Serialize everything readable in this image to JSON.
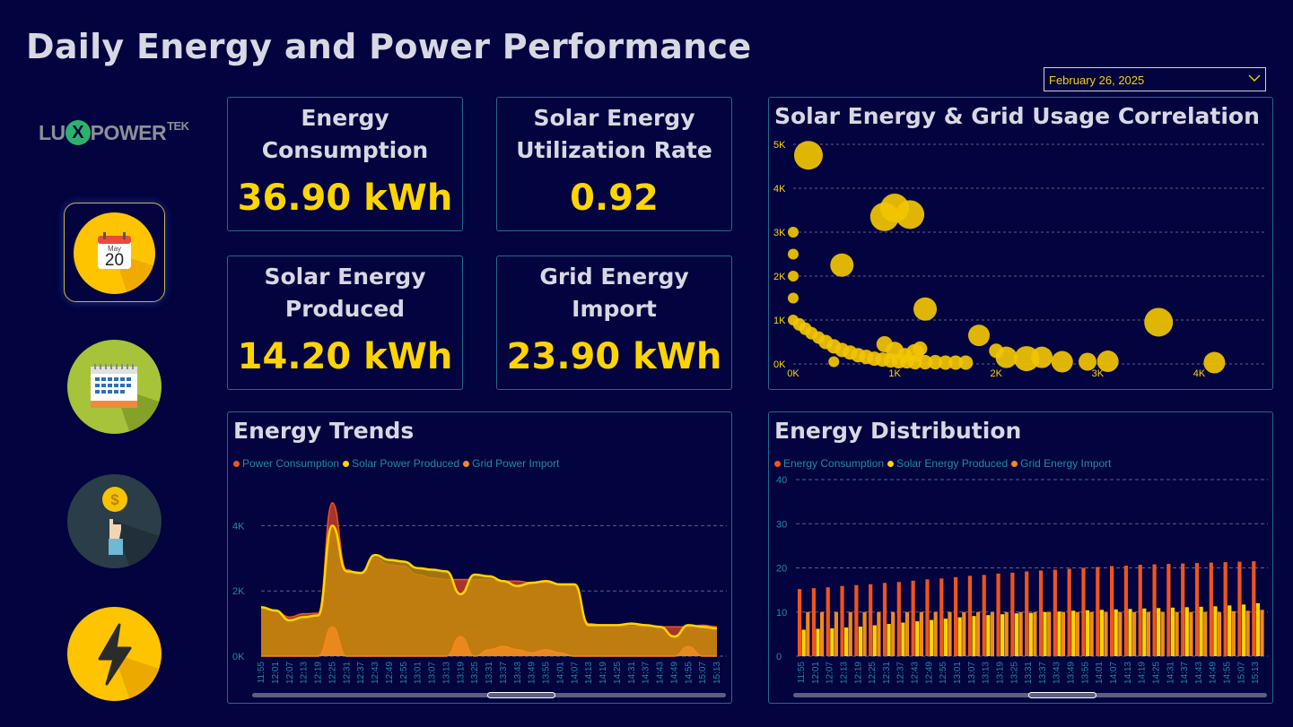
{
  "header": {
    "title": "Daily Energy and Power Performance"
  },
  "date_filter": {
    "value": "February 26, 2025"
  },
  "logo": {
    "part1": "LU",
    "x": "X",
    "part2": "POWER",
    "tek": "TEK"
  },
  "sidebar": {
    "items": [
      {
        "name": "daily",
        "icon": "daily-calendar-icon",
        "month": "May",
        "day": "20",
        "active": true
      },
      {
        "name": "monthly",
        "icon": "monthly-calendar-icon",
        "active": false
      },
      {
        "name": "cost",
        "icon": "cost-coin-hand-icon",
        "coin": "$",
        "active": false
      },
      {
        "name": "power",
        "icon": "lightning-bolt-icon",
        "active": false
      }
    ]
  },
  "kpis": [
    {
      "title_l1": "Energy",
      "title_l2": "Consumption",
      "value": "36.90 kWh"
    },
    {
      "title_l1": "Solar Energy",
      "title_l2": "Utilization Rate",
      "value": "0.92"
    },
    {
      "title_l1": "Solar Energy",
      "title_l2": "Produced",
      "value": "14.20 kWh"
    },
    {
      "title_l1": "Grid Energy",
      "title_l2": "Import",
      "value": "23.90 kWh"
    }
  ],
  "colors": {
    "background": "#02033f",
    "accent": "#ffd500",
    "consumption": "#f0541e",
    "solar": "#ffd500",
    "grid": "#f08a1e",
    "border": "#23698a"
  },
  "chart_data": [
    {
      "type": "scatter",
      "title": "Solar Energy & Grid Usage Correlation",
      "xlim": [
        0,
        4500
      ],
      "ylim": [
        0,
        5000
      ],
      "xticks": [
        "0K",
        "1K",
        "2K",
        "3K",
        "4K"
      ],
      "yticks": [
        "0K",
        "1K",
        "2K",
        "3K",
        "4K",
        "5K"
      ],
      "grid": true,
      "points": [
        [
          150,
          4750,
          16
        ],
        [
          900,
          3350,
          16
        ],
        [
          1000,
          3550,
          16
        ],
        [
          1150,
          3400,
          16
        ],
        [
          480,
          2250,
          13
        ],
        [
          1300,
          1250,
          13
        ],
        [
          3600,
          950,
          16
        ],
        [
          900,
          450,
          9
        ],
        [
          1830,
          650,
          12
        ],
        [
          2000,
          300,
          8
        ],
        [
          2100,
          150,
          12
        ],
        [
          2300,
          120,
          14
        ],
        [
          2450,
          150,
          12
        ],
        [
          2650,
          50,
          12
        ],
        [
          2900,
          50,
          10
        ],
        [
          3100,
          60,
          12
        ],
        [
          4150,
          30,
          12
        ],
        [
          0,
          3000,
          6
        ],
        [
          0,
          2500,
          6
        ],
        [
          0,
          2000,
          6
        ],
        [
          0,
          1500,
          6
        ],
        [
          0,
          1000,
          6
        ],
        [
          60,
          900,
          7
        ],
        [
          120,
          800,
          7
        ],
        [
          180,
          700,
          7
        ],
        [
          250,
          600,
          7
        ],
        [
          320,
          500,
          8
        ],
        [
          400,
          400,
          8
        ],
        [
          480,
          320,
          8
        ],
        [
          560,
          260,
          8
        ],
        [
          640,
          200,
          8
        ],
        [
          720,
          160,
          8
        ],
        [
          800,
          120,
          8
        ],
        [
          880,
          100,
          8
        ],
        [
          960,
          80,
          8
        ],
        [
          1040,
          60,
          8
        ],
        [
          1120,
          60,
          8
        ],
        [
          1200,
          40,
          8
        ],
        [
          1300,
          40,
          8
        ],
        [
          1400,
          40,
          8
        ],
        [
          1500,
          30,
          8
        ],
        [
          1600,
          30,
          8
        ],
        [
          1700,
          30,
          8
        ],
        [
          1000,
          300,
          10
        ],
        [
          1200,
          250,
          10
        ],
        [
          1100,
          200,
          8
        ],
        [
          1250,
          350,
          8
        ],
        [
          400,
          50,
          6
        ]
      ]
    },
    {
      "type": "area",
      "title": "Energy Trends",
      "legend": [
        "Power Consumption",
        "Solar Power Produced",
        "Grid Power Import"
      ],
      "ylim": [
        0,
        5000
      ],
      "yticks": [
        "0K",
        "2K",
        "4K"
      ],
      "grid": true,
      "x": [
        "11:55",
        "12:01",
        "12:07",
        "12:13",
        "12:19",
        "12:25",
        "12:31",
        "12:37",
        "12:43",
        "12:49",
        "12:55",
        "13:01",
        "13:07",
        "13:13",
        "13:19",
        "13:25",
        "13:31",
        "13:37",
        "13:43",
        "13:49",
        "13:55",
        "14:01",
        "14:07",
        "14:13",
        "14:19",
        "14:25",
        "14:31",
        "14:37",
        "14:43",
        "14:49",
        "14:55",
        "15:07",
        "15:13"
      ],
      "series": [
        {
          "name": "Power Consumption",
          "values": [
            1450,
            1380,
            1200,
            1300,
            1320,
            4700,
            2650,
            2500,
            3000,
            2800,
            2750,
            2500,
            2400,
            2350,
            2350,
            2350,
            2350,
            2300,
            2300,
            2250,
            2250,
            2200,
            2150,
            1000,
            950,
            950,
            900,
            950,
            900,
            900,
            900,
            950,
            900
          ]
        },
        {
          "name": "Solar Power Produced",
          "values": [
            1500,
            1400,
            1100,
            1200,
            1250,
            4000,
            2600,
            2550,
            3100,
            2950,
            2900,
            2700,
            2650,
            2600,
            1900,
            2500,
            2450,
            2300,
            2150,
            2250,
            2300,
            2200,
            2200,
            950,
            950,
            950,
            1000,
            950,
            900,
            600,
            950,
            900,
            850
          ]
        },
        {
          "name": "Grid Power Import",
          "values": [
            0,
            0,
            0,
            0,
            0,
            900,
            0,
            0,
            0,
            0,
            0,
            0,
            0,
            0,
            600,
            0,
            200,
            300,
            200,
            100,
            200,
            100,
            0,
            0,
            0,
            0,
            0,
            0,
            0,
            0,
            300,
            0,
            0
          ]
        }
      ]
    },
    {
      "type": "bar",
      "title": "Energy Distribution",
      "legend": [
        "Energy Consumption",
        "Solar Energy Produced",
        "Grid Energy Import"
      ],
      "ylim": [
        0,
        40
      ],
      "yticks": [
        "0",
        "10",
        "20",
        "30",
        "40"
      ],
      "grid": true,
      "categories": [
        "11:55",
        "12:01",
        "12:07",
        "12:13",
        "12:19",
        "12:25",
        "12:31",
        "12:37",
        "12:43",
        "12:49",
        "12:55",
        "13:01",
        "13:07",
        "13:13",
        "13:19",
        "13:25",
        "13:31",
        "13:37",
        "13:43",
        "13:49",
        "13:55",
        "14:01",
        "14:07",
        "14:13",
        "14:19",
        "14:25",
        "14:31",
        "14:37",
        "14:43",
        "14:49",
        "14:55",
        "15:07",
        "15:13"
      ],
      "series": [
        {
          "name": "Energy Consumption",
          "values": [
            15.2,
            15.4,
            15.6,
            15.9,
            16.1,
            16.3,
            16.6,
            16.8,
            17.1,
            17.4,
            17.6,
            17.9,
            18.2,
            18.4,
            18.7,
            18.9,
            19.2,
            19.4,
            19.6,
            19.8,
            20.0,
            20.2,
            20.4,
            20.5,
            20.7,
            20.8,
            20.9,
            21.0,
            21.1,
            21.2,
            21.3,
            21.4,
            21.5
          ]
        },
        {
          "name": "Solar Energy Produced",
          "values": [
            6.0,
            6.2,
            6.3,
            6.5,
            6.7,
            7.0,
            7.3,
            7.6,
            7.9,
            8.2,
            8.5,
            8.8,
            9.1,
            9.3,
            9.5,
            9.7,
            9.8,
            10.0,
            10.1,
            10.3,
            10.4,
            10.5,
            10.6,
            10.7,
            10.8,
            10.9,
            11.0,
            11.1,
            11.2,
            11.3,
            11.5,
            11.7,
            12.0
          ]
        },
        {
          "name": "Grid Energy Import",
          "values": [
            10.0,
            10.0,
            10.0,
            10.0,
            10.0,
            10.0,
            10.0,
            10.0,
            10.0,
            10.0,
            10.0,
            10.0,
            10.0,
            10.0,
            10.0,
            10.0,
            10.0,
            10.0,
            10.0,
            10.0,
            10.0,
            10.0,
            10.0,
            10.0,
            10.0,
            10.0,
            10.0,
            10.0,
            10.0,
            10.0,
            10.2,
            10.3,
            10.5
          ]
        }
      ]
    }
  ]
}
